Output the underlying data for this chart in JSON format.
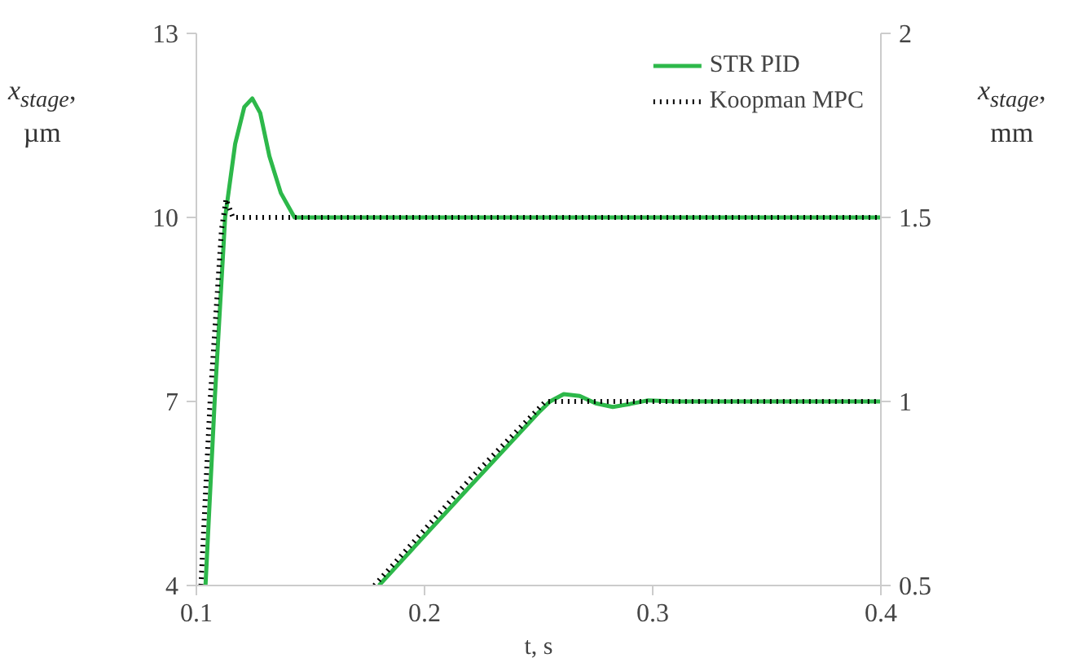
{
  "chart_data": {
    "type": "line",
    "xlabel": "t, s",
    "ylabel": "x$_{stage}$, µm",
    "y2label": "x$_{stage}$, mm",
    "xlim": [
      0.1,
      0.4
    ],
    "xticks": [
      0.1,
      0.2,
      0.3,
      0.4
    ],
    "ylim": [
      4,
      13
    ],
    "yticks": [
      4,
      7,
      10,
      13
    ],
    "y2lim": [
      0.5,
      2
    ],
    "y2ticks": [
      0.5,
      1,
      1.5,
      2
    ],
    "legend": "top right",
    "grid": false,
    "series": [
      {
        "name": "STR PID",
        "color": "#2db84a",
        "line_style": "solid",
        "x": [
          0.104,
          0.108,
          0.1126,
          0.117,
          0.121,
          0.1245,
          0.128,
          0.132,
          0.137,
          0.143,
          0.15,
          0.2,
          0.3,
          0.4
        ],
        "values": [
          4,
          7,
          10,
          11.2,
          11.8,
          11.94,
          11.7,
          11.0,
          10.4,
          10.0,
          10.0,
          10.0,
          10.0,
          10.0
        ]
      },
      {
        "name": "Koopman MPC",
        "color": "#000000",
        "line_style": "dotted",
        "x": [
          0.102,
          0.106,
          0.111,
          0.113,
          0.116,
          0.12,
          0.2,
          0.3,
          0.4
        ],
        "values": [
          4,
          7,
          9.8,
          10.3,
          10.0,
          10.0,
          10.0,
          10.0,
          10.0
        ]
      },
      {
        "color": "#2db84a",
        "line_style": "solid",
        "axis": "y2",
        "x": [
          0.18,
          0.22,
          0.25,
          0.255,
          0.261,
          0.268,
          0.275,
          0.2825,
          0.29,
          0.298,
          0.31,
          0.4
        ],
        "values": [
          0.5,
          0.77,
          0.97,
          1.0,
          1.02,
          1.015,
          0.995,
          0.985,
          0.993,
          1.003,
          1.0,
          1.0
        ]
      },
      {
        "color": "#000000",
        "line_style": "dotted",
        "axis": "y2",
        "x": [
          0.178,
          0.22,
          0.253,
          0.3,
          0.4
        ],
        "values": [
          0.5,
          0.79,
          1.0,
          1.0,
          1.0
        ]
      }
    ]
  }
}
